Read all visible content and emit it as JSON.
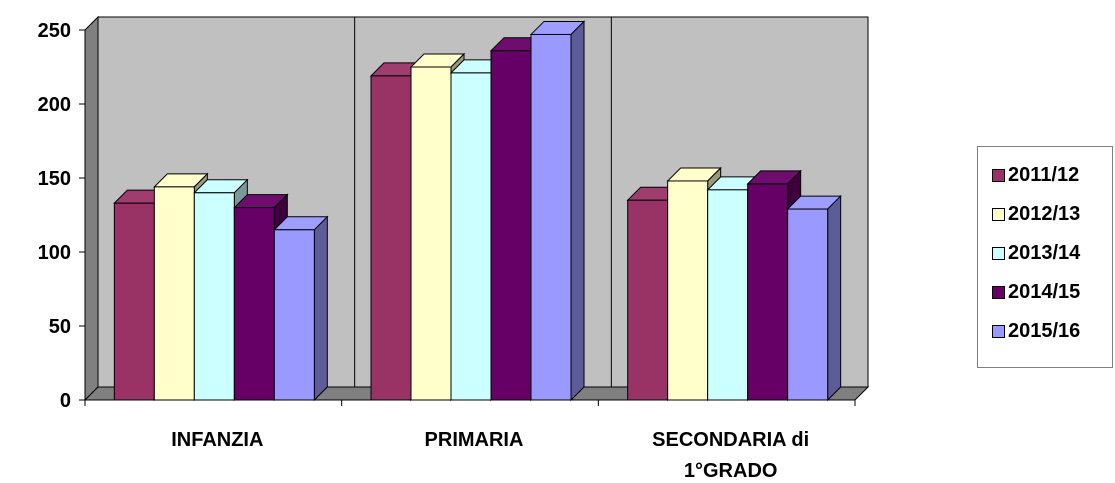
{
  "chart_data": {
    "type": "bar",
    "title": "",
    "xlabel": "",
    "ylabel": "",
    "ylim": [
      0,
      250
    ],
    "yticks": [
      0,
      50,
      100,
      150,
      200,
      250
    ],
    "grid": false,
    "legend_position": "right",
    "categories": [
      [
        "INFANZIA"
      ],
      [
        "PRIMARIA"
      ],
      [
        "SECONDARIA di",
        "1°GRADO"
      ]
    ],
    "series": [
      {
        "name": "2011/12",
        "color": "#993366",
        "values": [
          133,
          219,
          135
        ]
      },
      {
        "name": "2012/13",
        "color": "#ffffcc",
        "values": [
          144,
          225,
          148
        ]
      },
      {
        "name": "2013/14",
        "color": "#ccffff",
        "values": [
          140,
          221,
          142
        ]
      },
      {
        "name": "2014/15",
        "color": "#660066",
        "values": [
          130,
          236,
          146
        ]
      },
      {
        "name": "2015/16",
        "color": "#9999ff",
        "values": [
          115,
          247,
          129
        ]
      }
    ]
  }
}
